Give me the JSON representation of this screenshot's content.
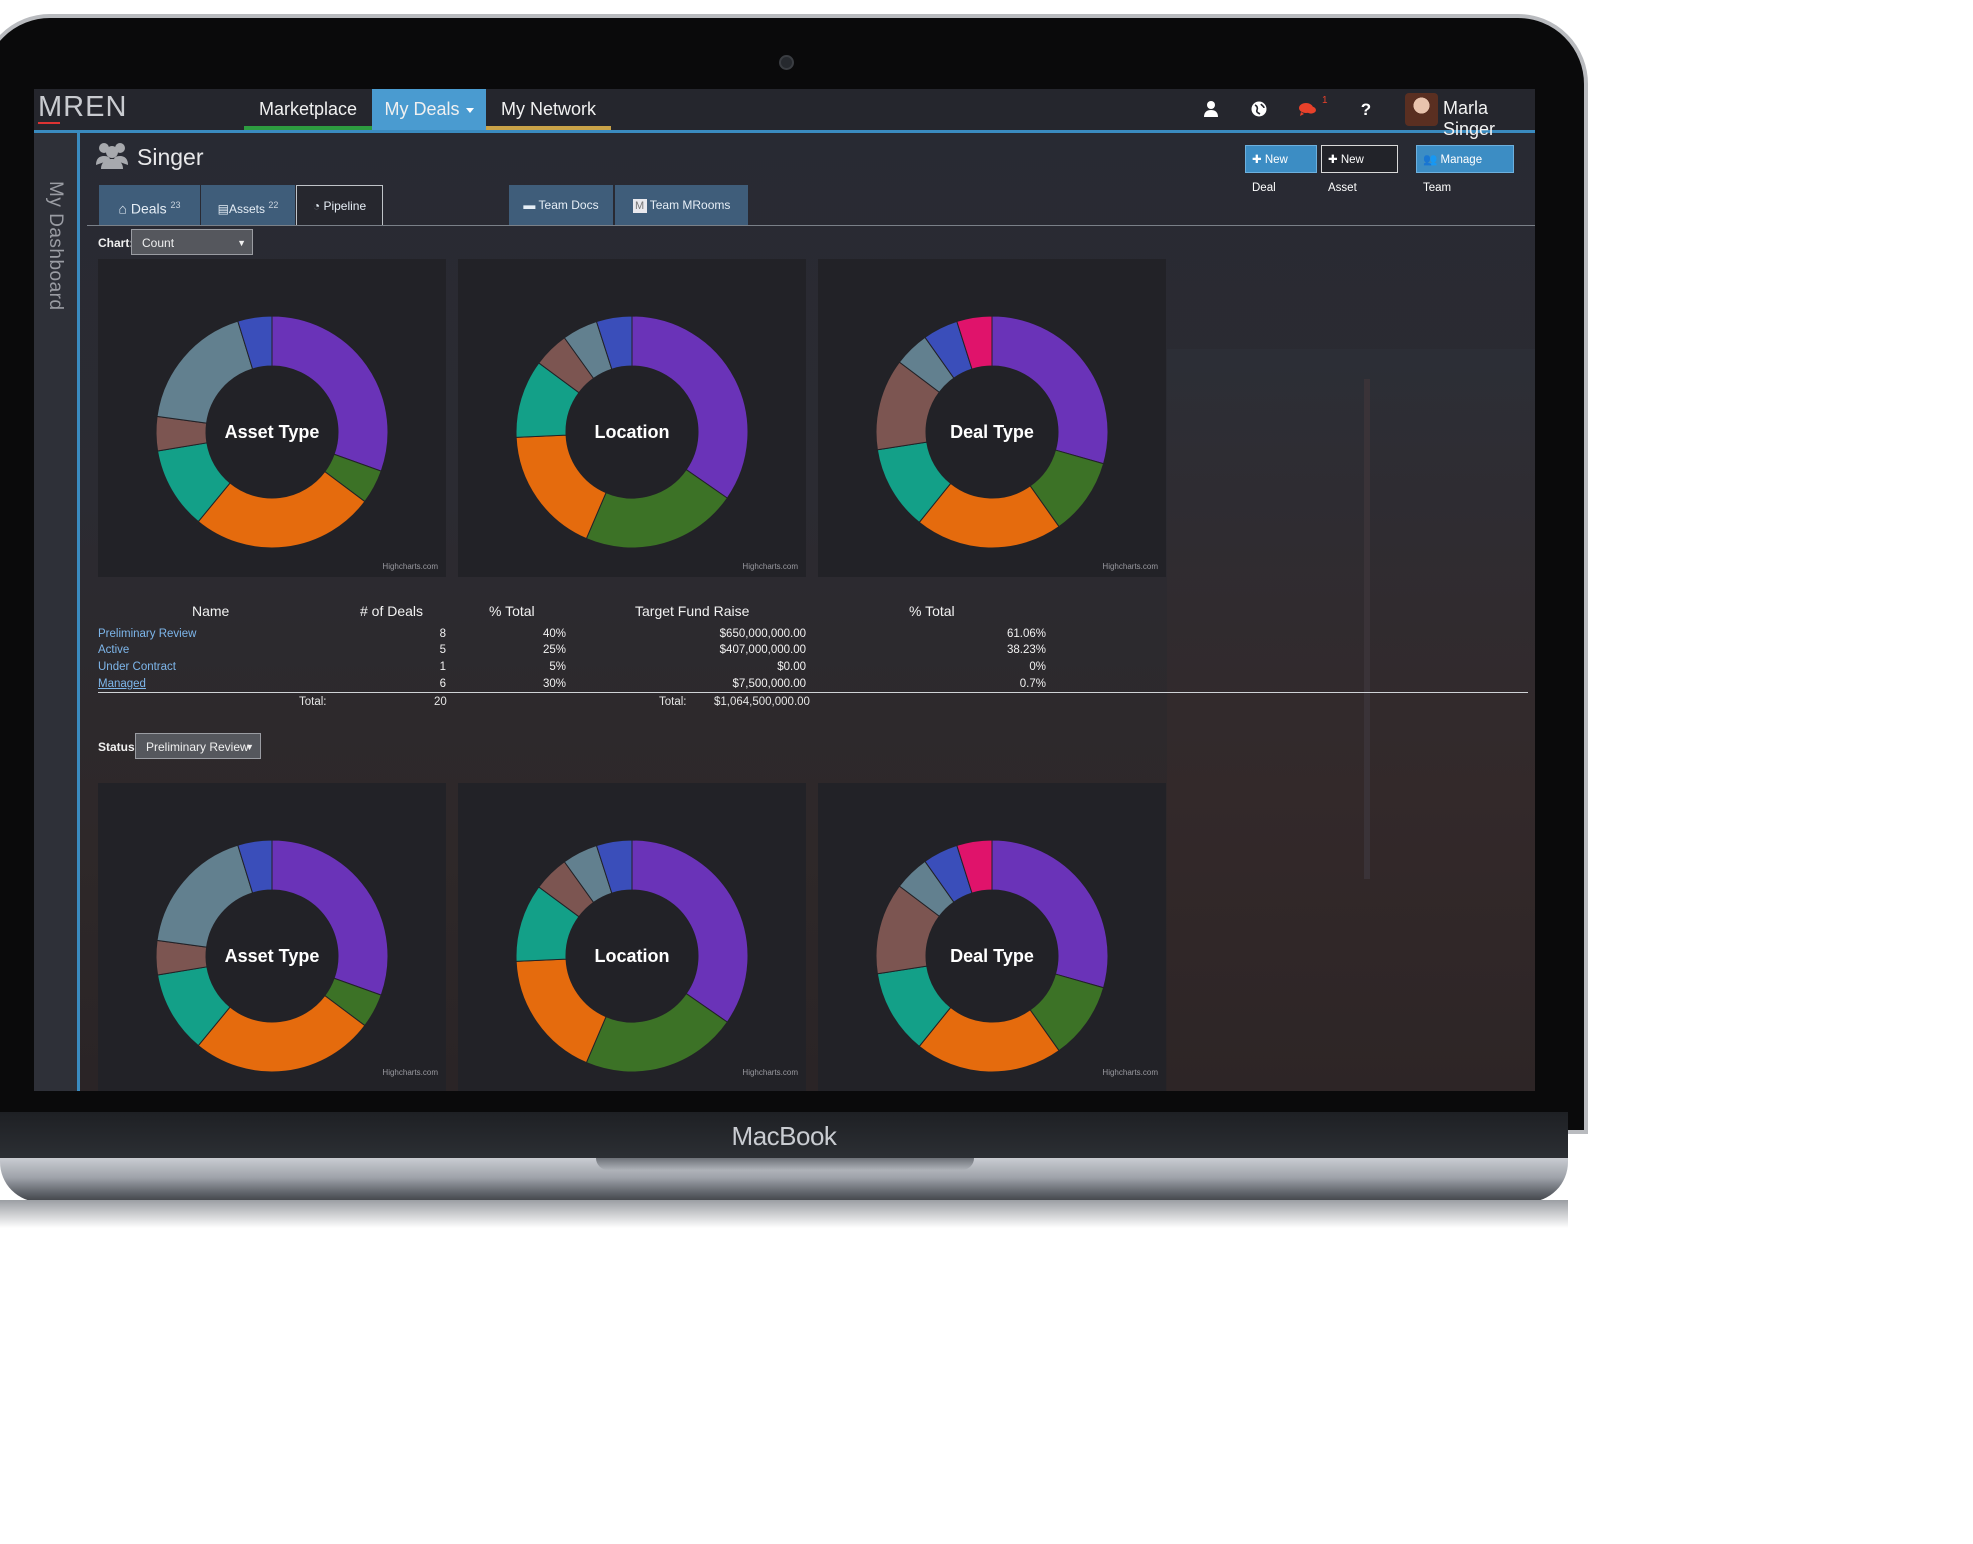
{
  "device": {
    "label": "MacBook"
  },
  "navbar": {
    "logo": "MREN",
    "items": [
      {
        "label": "Marketplace"
      },
      {
        "label": "My Deals"
      },
      {
        "label": "My Network"
      }
    ],
    "notification_count": "1",
    "user_name": "Marla Singer",
    "accent": "#3a8bc0"
  },
  "sidebar": {
    "label": "My Dashboard"
  },
  "header": {
    "title": "Singer",
    "buttons": {
      "new_deal": "New Deal",
      "new_asset": "New Asset",
      "manage_team": "Manage Team"
    }
  },
  "tabs": {
    "deals": {
      "label": "Deals",
      "count": "23"
    },
    "assets": {
      "label": "Assets",
      "count": "22"
    },
    "pipeline": {
      "label": "Pipeline"
    },
    "team_docs": {
      "label": "Team Docs"
    },
    "team_mrooms": {
      "label": "Team MRooms"
    }
  },
  "chart_control": {
    "label": "Chart:",
    "value": "Count"
  },
  "status_control": {
    "label": "Status:",
    "value": "Preliminary Review"
  },
  "credit": "Highcharts.com",
  "chart_data": [
    {
      "type": "pie",
      "title": "Asset Type",
      "variant": "donut",
      "values": [
        32,
        5,
        27,
        12,
        5,
        19
      ],
      "colors": [
        "#6a33b8",
        "#3c7226",
        "#e56b0d",
        "#13a088",
        "#7c5551",
        "#62808f",
        "#3a4eba"
      ],
      "extra_values": [
        5
      ]
    },
    {
      "type": "pie",
      "title": "Location",
      "variant": "donut",
      "values": [
        35,
        22,
        18,
        11,
        5,
        5,
        5
      ],
      "colors": [
        "#6a33b8",
        "#3c7226",
        "#e56b0d",
        "#13a088",
        "#7c5551",
        "#62808f",
        "#3a4eba",
        "#e0136b"
      ]
    },
    {
      "type": "pie",
      "title": "Deal Type",
      "variant": "donut",
      "values": [
        30,
        11,
        21,
        12,
        13,
        5,
        5,
        5
      ],
      "colors": [
        "#6a33b8",
        "#3c7226",
        "#e56b0d",
        "#13a088",
        "#7c5551",
        "#62808f",
        "#3a4eba",
        "#e0136b"
      ]
    }
  ],
  "table": {
    "headers": [
      "Name",
      "# of Deals",
      "% Total",
      "Target Fund Raise",
      "% Total"
    ],
    "rows": [
      {
        "name": "Preliminary Review",
        "deals": "8",
        "pct": "40%",
        "raise": "$650,000,000.00",
        "raise_pct": "61.06%"
      },
      {
        "name": "Active",
        "deals": "5",
        "pct": "25%",
        "raise": "$407,000,000.00",
        "raise_pct": "38.23%"
      },
      {
        "name": "Under Contract",
        "deals": "1",
        "pct": "5%",
        "raise": "$0.00",
        "raise_pct": "0%"
      },
      {
        "name": "Managed",
        "deals": "6",
        "pct": "30%",
        "raise": "$7,500,000.00",
        "raise_pct": "0.7%"
      }
    ],
    "total_label": "Total:",
    "total_deals": "20",
    "total_raise": "$1,064,500,000.00"
  }
}
